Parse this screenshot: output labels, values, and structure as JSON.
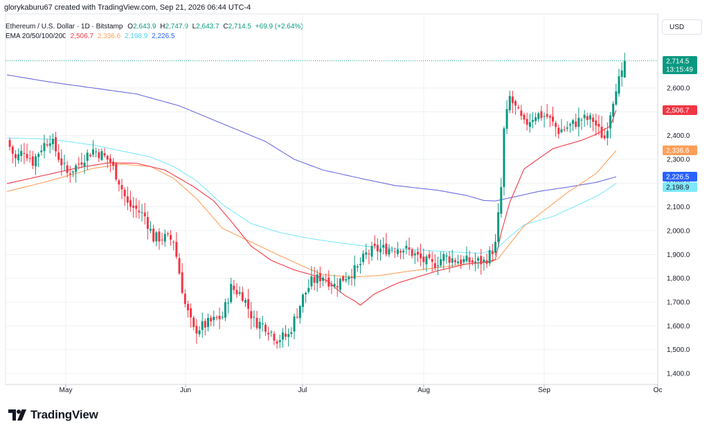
{
  "header": {
    "attribution": "glorykaburu67 created with TradingView.com, Sep 21, 2026 06:44 UTC-4"
  },
  "legend": {
    "symbol": "Ethereum / U.S. Dollar · 1D · Bitstamp",
    "o_label": "O",
    "o_value": "2,643.9",
    "h_label": "H",
    "h_value": "2,747.9",
    "l_label": "L",
    "l_value": "2,643.7",
    "c_label": "C",
    "c_value": "2,714.5",
    "change": "+69.9 (+2.64%)",
    "ema_label": "EMA 20/50/100/200",
    "ema20": "2,506.7",
    "ema50": "2,336.6",
    "ema100": "2,198.9",
    "ema200": "2,226.5"
  },
  "currency_button": "USD",
  "brand": {
    "name": "TradingView"
  },
  "colors": {
    "up": "#089981",
    "down": "#f23645",
    "ema20": "#f23645",
    "ema50": "#ff9f5a",
    "ema100": "#7ee8fa",
    "ema200": "#6b6bdf"
  },
  "chart_data": {
    "type": "candlestick",
    "symbol": "Ethereum / U.S. Dollar",
    "interval": "1D",
    "exchange": "Bitstamp",
    "y_axis": {
      "ticks": [
        "1,400.0",
        "1,500.0",
        "1,600.0",
        "1,700.0",
        "1,800.0",
        "1,900.0",
        "2,000.0",
        "2,100.0",
        "2,200.0",
        "2,300.0",
        "2,400.0",
        "2,500.0",
        "2,600.0"
      ],
      "min": 1400,
      "max": 2600,
      "range": [
        1380,
        2780
      ]
    },
    "x_axis": {
      "ticks": [
        "May",
        "Jun",
        "Jul",
        "Aug",
        "Sep",
        "Oc"
      ]
    },
    "price_labels": [
      {
        "value": "2,714.5",
        "sub": "13:15:49",
        "color": "#089981"
      },
      {
        "value": "2,506.7",
        "color": "#f23645"
      },
      {
        "value": "2,336.6",
        "color": "#ff9f5a"
      },
      {
        "value": "2,226.5",
        "color": "#2962ff"
      },
      {
        "value": "2,198.9",
        "color": "#7ee8fa"
      }
    ],
    "ema_keys": [
      [
        0,
        2198
      ],
      [
        10,
        2225
      ],
      [
        25,
        2265
      ],
      [
        35,
        2285
      ],
      [
        45,
        2284
      ],
      [
        55,
        2255
      ],
      [
        65,
        2185
      ],
      [
        72,
        2125
      ],
      [
        78,
        2040
      ],
      [
        85,
        1935
      ],
      [
        92,
        1875
      ],
      [
        100,
        1835
      ],
      [
        108,
        1808
      ],
      [
        112,
        1785
      ],
      [
        115,
        1752
      ],
      [
        118,
        1725
      ],
      [
        121,
        1705
      ],
      [
        123,
        1687
      ],
      [
        128,
        1735
      ],
      [
        136,
        1780
      ],
      [
        150,
        1832
      ],
      [
        160,
        1860
      ],
      [
        168,
        1870
      ],
      [
        170,
        1880
      ],
      [
        172,
        1990
      ],
      [
        175,
        2120
      ],
      [
        180,
        2260
      ],
      [
        190,
        2345
      ],
      [
        200,
        2380
      ],
      [
        205,
        2405
      ],
      [
        210,
        2440
      ],
      [
        212,
        2506.7
      ]
    ],
    "ema50_keys": [
      [
        0,
        2165
      ],
      [
        15,
        2210
      ],
      [
        30,
        2262
      ],
      [
        40,
        2280
      ],
      [
        50,
        2270
      ],
      [
        58,
        2220
      ],
      [
        66,
        2135
      ],
      [
        75,
        2010
      ],
      [
        85,
        1952
      ],
      [
        95,
        1895
      ],
      [
        105,
        1840
      ],
      [
        110,
        1815
      ],
      [
        120,
        1805
      ],
      [
        130,
        1812
      ],
      [
        140,
        1830
      ],
      [
        150,
        1845
      ],
      [
        160,
        1860
      ],
      [
        168,
        1868
      ],
      [
        171,
        1882
      ],
      [
        175,
        1945
      ],
      [
        180,
        2020
      ],
      [
        187,
        2085
      ],
      [
        195,
        2160
      ],
      [
        205,
        2240
      ],
      [
        212,
        2336.6
      ]
    ],
    "ema100_keys": [
      [
        0,
        2390
      ],
      [
        15,
        2385
      ],
      [
        30,
        2360
      ],
      [
        40,
        2335
      ],
      [
        50,
        2310
      ],
      [
        58,
        2270
      ],
      [
        66,
        2210
      ],
      [
        75,
        2110
      ],
      [
        85,
        2030
      ],
      [
        95,
        1992
      ],
      [
        105,
        1968
      ],
      [
        115,
        1950
      ],
      [
        125,
        1935
      ],
      [
        135,
        1925
      ],
      [
        145,
        1918
      ],
      [
        155,
        1911
      ],
      [
        165,
        1905
      ],
      [
        170,
        1920
      ],
      [
        175,
        1975
      ],
      [
        180,
        2025
      ],
      [
        190,
        2060
      ],
      [
        200,
        2115
      ],
      [
        206,
        2150
      ],
      [
        212,
        2198.9
      ]
    ],
    "ema200_keys": [
      [
        0,
        2655
      ],
      [
        15,
        2625
      ],
      [
        30,
        2600
      ],
      [
        45,
        2575
      ],
      [
        60,
        2525
      ],
      [
        75,
        2450
      ],
      [
        90,
        2375
      ],
      [
        100,
        2300
      ],
      [
        110,
        2255
      ],
      [
        125,
        2215
      ],
      [
        135,
        2190
      ],
      [
        150,
        2170
      ],
      [
        160,
        2148
      ],
      [
        166,
        2127
      ],
      [
        170,
        2125
      ],
      [
        175,
        2138
      ],
      [
        185,
        2165
      ],
      [
        195,
        2183
      ],
      [
        205,
        2203
      ],
      [
        212,
        2226.5
      ]
    ],
    "price_keys": [
      [
        0,
        2380
      ],
      [
        3,
        2300
      ],
      [
        6,
        2340
      ],
      [
        9,
        2290
      ],
      [
        12,
        2350
      ],
      [
        15,
        2390
      ],
      [
        18,
        2310
      ],
      [
        21,
        2240
      ],
      [
        24,
        2270
      ],
      [
        27,
        2310
      ],
      [
        30,
        2340
      ],
      [
        33,
        2320
      ],
      [
        36,
        2290
      ],
      [
        39,
        2210
      ],
      [
        42,
        2110
      ],
      [
        45,
        2090
      ],
      [
        48,
        2060
      ],
      [
        51,
        1970
      ],
      [
        55,
        1970
      ],
      [
        58,
        1960
      ],
      [
        62,
        1690
      ],
      [
        65,
        1580
      ],
      [
        70,
        1610
      ],
      [
        75,
        1640
      ],
      [
        78,
        1760
      ],
      [
        82,
        1730
      ],
      [
        86,
        1620
      ],
      [
        90,
        1600
      ],
      [
        94,
        1545
      ],
      [
        98,
        1560
      ],
      [
        100,
        1625
      ],
      [
        103,
        1720
      ],
      [
        106,
        1785
      ],
      [
        110,
        1810
      ],
      [
        114,
        1770
      ],
      [
        118,
        1810
      ],
      [
        122,
        1840
      ],
      [
        125,
        1900
      ],
      [
        128,
        1920
      ],
      [
        133,
        1925
      ],
      [
        137,
        1930
      ],
      [
        140,
        1915
      ],
      [
        144,
        1880
      ],
      [
        148,
        1855
      ],
      [
        152,
        1890
      ],
      [
        157,
        1875
      ],
      [
        162,
        1870
      ],
      [
        166,
        1870
      ],
      [
        168,
        1900
      ],
      [
        170,
        1940
      ],
      [
        172,
        2180
      ],
      [
        173,
        2420
      ],
      [
        175,
        2560
      ],
      [
        180,
        2445
      ],
      [
        184,
        2490
      ],
      [
        188,
        2480
      ],
      [
        192,
        2420
      ],
      [
        196,
        2440
      ],
      [
        200,
        2470
      ],
      [
        204,
        2465
      ],
      [
        206,
        2420
      ],
      [
        208,
        2390
      ],
      [
        210,
        2500
      ],
      [
        212,
        2610
      ],
      [
        214,
        2650
      ],
      [
        215,
        2714.5
      ]
    ]
  }
}
